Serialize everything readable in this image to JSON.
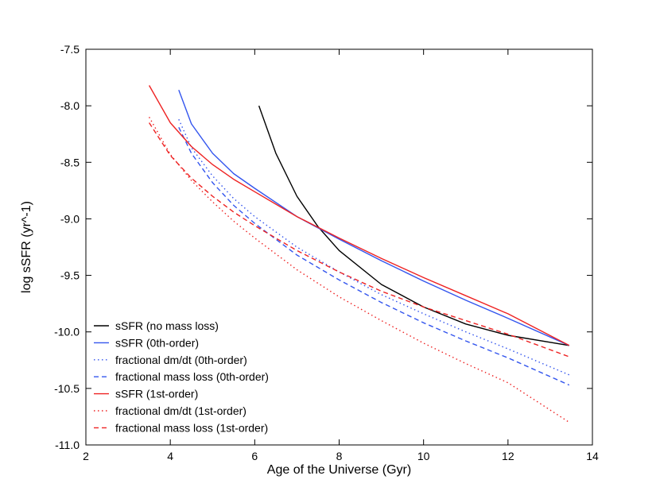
{
  "chart_data": {
    "type": "line",
    "title": "",
    "xlabel": "Age of the Universe (Gyr)",
    "ylabel": "log sSFR (yr^-1)",
    "xlim": [
      2,
      14
    ],
    "ylim": [
      -11.0,
      -7.5
    ],
    "xticks": [
      2,
      4,
      6,
      8,
      10,
      12,
      14
    ],
    "xtick_labels": [
      "2",
      "4",
      "6",
      "8",
      "10",
      "12",
      "14"
    ],
    "yticks": [
      -7.5,
      -8.0,
      -8.5,
      -9.0,
      -9.5,
      -10.0,
      -10.5,
      -11.0
    ],
    "ytick_labels": [
      "-7.5",
      "-8.0",
      "-8.5",
      "-9.0",
      "-9.5",
      "-10.0",
      "-10.5",
      "-11.0"
    ],
    "grid": false,
    "legend_position": "lower-left",
    "series": [
      {
        "name": "sSFR (no mass loss)",
        "color": "#000000",
        "dash": "solid",
        "x": [
          6.1,
          6.5,
          7.0,
          7.5,
          8.0,
          9.0,
          10.0,
          11.0,
          12.0,
          13.45
        ],
        "y": [
          -8.0,
          -8.42,
          -8.8,
          -9.07,
          -9.28,
          -9.58,
          -9.78,
          -9.93,
          -10.03,
          -10.12
        ]
      },
      {
        "name": "sSFR (0th-order)",
        "color": "#3355ee",
        "dash": "solid",
        "x": [
          4.2,
          4.5,
          5.0,
          5.5,
          6.0,
          7.0,
          8.0,
          9.0,
          10.0,
          11.0,
          12.0,
          13.45
        ],
        "y": [
          -7.86,
          -8.16,
          -8.42,
          -8.6,
          -8.73,
          -8.98,
          -9.18,
          -9.37,
          -9.55,
          -9.72,
          -9.88,
          -10.12
        ]
      },
      {
        "name": "fractional dm/dt (0th-order)",
        "color": "#3355ee",
        "dash": "dotted",
        "x": [
          4.2,
          4.5,
          5.0,
          5.5,
          6.0,
          7.0,
          8.0,
          9.0,
          10.0,
          11.0,
          12.0,
          13.45
        ],
        "y": [
          -8.12,
          -8.37,
          -8.62,
          -8.82,
          -8.98,
          -9.25,
          -9.47,
          -9.67,
          -9.84,
          -10.0,
          -10.15,
          -10.38
        ]
      },
      {
        "name": "fractional mass loss (0th-order)",
        "color": "#3355ee",
        "dash": "dashed",
        "x": [
          4.2,
          4.5,
          5.0,
          5.5,
          6.0,
          7.0,
          8.0,
          9.0,
          10.0,
          11.0,
          12.0,
          13.45
        ],
        "y": [
          -8.19,
          -8.42,
          -8.68,
          -8.88,
          -9.04,
          -9.32,
          -9.54,
          -9.74,
          -9.92,
          -10.08,
          -10.23,
          -10.47
        ]
      },
      {
        "name": "sSFR (1st-order)",
        "color": "#ee2222",
        "dash": "solid",
        "x": [
          3.5,
          4.0,
          4.5,
          5.0,
          5.5,
          6.0,
          7.0,
          8.0,
          9.0,
          10.0,
          11.0,
          12.0,
          13.45
        ],
        "y": [
          -7.82,
          -8.15,
          -8.36,
          -8.52,
          -8.65,
          -8.76,
          -8.98,
          -9.17,
          -9.35,
          -9.52,
          -9.68,
          -9.84,
          -10.12
        ]
      },
      {
        "name": "fractional dm/dt (1st-order)",
        "color": "#ee2222",
        "dash": "dotted",
        "x": [
          3.5,
          4.0,
          4.5,
          5.0,
          5.5,
          6.0,
          7.0,
          8.0,
          9.0,
          10.0,
          11.0,
          12.0,
          13.45
        ],
        "y": [
          -8.1,
          -8.43,
          -8.66,
          -8.85,
          -9.02,
          -9.17,
          -9.45,
          -9.69,
          -9.9,
          -10.1,
          -10.28,
          -10.45,
          -10.8
        ]
      },
      {
        "name": "fractional mass loss (1st-order)",
        "color": "#ee2222",
        "dash": "dashed",
        "x": [
          3.5,
          4.0,
          4.5,
          5.0,
          5.5,
          6.0,
          7.0,
          8.0,
          9.0,
          10.0,
          11.0,
          12.0,
          13.45
        ],
        "y": [
          -8.15,
          -8.44,
          -8.64,
          -8.8,
          -8.94,
          -9.06,
          -9.28,
          -9.47,
          -9.64,
          -9.78,
          -9.9,
          -10.02,
          -10.22
        ]
      }
    ]
  }
}
